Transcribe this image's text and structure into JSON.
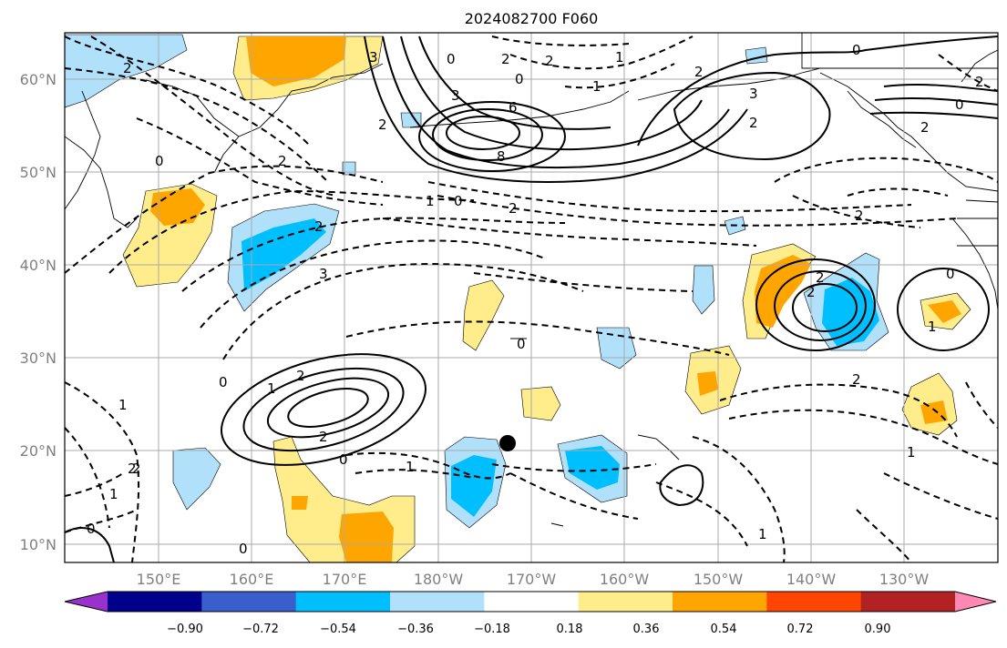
{
  "title": "2024082700 F060",
  "lat_labels": [
    "60°N",
    "50°N",
    "40°N",
    "30°N",
    "20°N",
    "10°N"
  ],
  "lon_labels": [
    "150°E",
    "160°E",
    "170°E",
    "180°W",
    "170°W",
    "160°W",
    "150°W",
    "140°W",
    "130°W"
  ],
  "colorbar": {
    "ticks": [
      "−0.90",
      "−0.72",
      "−0.54",
      "−0.36",
      "−0.18",
      "0.18",
      "0.36",
      "0.54",
      "0.72",
      "0.90"
    ],
    "colors": [
      "#9932cc",
      "#00008b",
      "#3a5fcd",
      "#00bfff",
      "#b0e0fa",
      "#ffffff",
      "#ffec8b",
      "#ffa500",
      "#ff4500",
      "#b22222",
      "#ff88b4"
    ]
  },
  "contour_labels": [
    "2",
    "3",
    "0",
    "2",
    "2",
    "1",
    "0",
    "2",
    "3",
    "6",
    "8",
    "3",
    "2",
    "0",
    "2",
    "1",
    "2",
    "0",
    "2",
    "0",
    "2",
    "1",
    "0",
    "2",
    "2",
    "2",
    "3",
    "2",
    "2",
    "0",
    "1",
    "0",
    "1",
    "2",
    "1",
    "2",
    "0",
    "1",
    "2",
    "2",
    "1",
    "0",
    "0",
    "1",
    "2",
    "0",
    "1"
  ],
  "marker": "storm-center-dot"
}
